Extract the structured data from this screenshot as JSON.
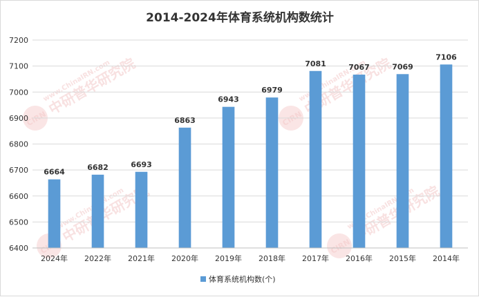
{
  "chart_data": {
    "type": "bar",
    "title": "2014-2024年体育系统机构数统计",
    "categories": [
      "2024年",
      "2022年",
      "2021年",
      "2020年",
      "2019年",
      "2018年",
      "2017年",
      "2016年",
      "2015年",
      "2014年"
    ],
    "series": [
      {
        "name": "体育系统机构数(个)",
        "values": [
          6664,
          6682,
          6693,
          6863,
          6943,
          6979,
          7081,
          7067,
          7069,
          7106
        ],
        "color": "#5b9bd5"
      }
    ],
    "xlabel": "",
    "ylabel": "",
    "ylim": [
      6400,
      7200
    ],
    "yticks": [
      6400,
      6500,
      6600,
      6700,
      6800,
      6900,
      7000,
      7100,
      7200
    ],
    "grid": true,
    "legend": "bottom"
  },
  "watermark": {
    "text_line1": "www.ChinaIRN.com",
    "text_line2": "中研普华研究院",
    "logo_text": "CIRN"
  }
}
